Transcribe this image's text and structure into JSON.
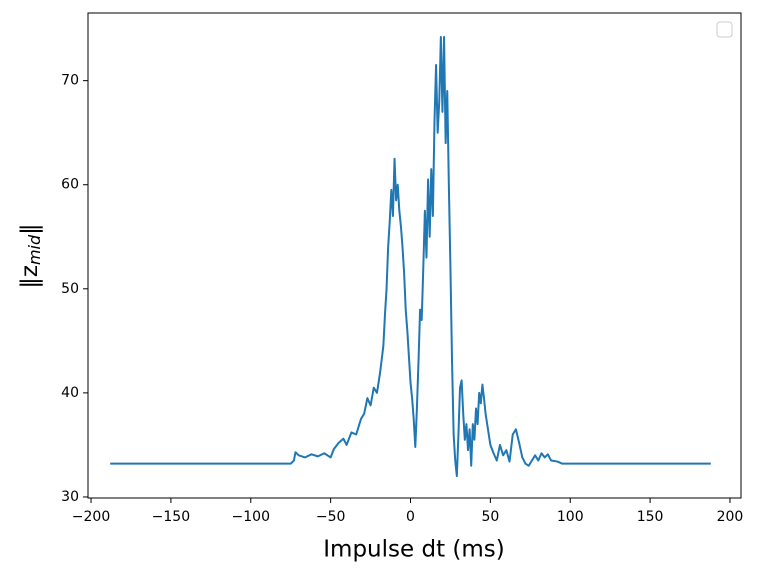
{
  "chart_data": {
    "type": "line",
    "xlabel": "Impulse dt (ms)",
    "ylabel_parts": [
      "‖z",
      "mid",
      "‖"
    ],
    "x": [
      -188,
      -75,
      -73,
      -72,
      -70,
      -66,
      -62,
      -58,
      -54,
      -50,
      -48,
      -45,
      -42,
      -40,
      -37,
      -34,
      -31,
      -29,
      -27,
      -25,
      -23,
      -21,
      -19,
      -17,
      -16,
      -15,
      -14,
      -13,
      -12,
      -11,
      -10,
      -9,
      -8,
      -7,
      -6,
      -5,
      -4,
      -3,
      -2,
      -1,
      0,
      1,
      2,
      3,
      4,
      5,
      6,
      7,
      8,
      9,
      10,
      11,
      12,
      13,
      14,
      15,
      16,
      17,
      18,
      19,
      20,
      21,
      22,
      23,
      24,
      25,
      26,
      27,
      28,
      29,
      30,
      31,
      32,
      33,
      34,
      35,
      36,
      37,
      38,
      39,
      40,
      41,
      42,
      43,
      44,
      45,
      46,
      47,
      48,
      50,
      52,
      54,
      56,
      58,
      60,
      62,
      64,
      66,
      68,
      70,
      72,
      74,
      76,
      78,
      80,
      82,
      84,
      86,
      88,
      92,
      95,
      188
    ],
    "series": [
      {
        "color": "#1f77b4",
        "values": [
          33.2,
          33.2,
          33.5,
          34.3,
          34.0,
          33.8,
          34.1,
          33.9,
          34.2,
          33.8,
          34.6,
          35.2,
          35.6,
          35.0,
          36.2,
          36.0,
          37.5,
          38.0,
          39.5,
          38.8,
          40.5,
          40.0,
          42.0,
          44.5,
          47.5,
          50.0,
          54.0,
          56.5,
          59.5,
          57.0,
          62.5,
          58.5,
          60.0,
          57.5,
          56.0,
          54.0,
          51.5,
          48.0,
          46.0,
          43.5,
          41.0,
          39.5,
          37.5,
          34.8,
          38.5,
          43.0,
          48.0,
          47.0,
          52.0,
          57.5,
          53.0,
          60.5,
          55.0,
          61.5,
          57.0,
          66.0,
          71.5,
          65.0,
          68.0,
          74.2,
          67.0,
          74.2,
          64.0,
          69.0,
          60.0,
          52.0,
          43.0,
          36.0,
          33.5,
          32.0,
          36.0,
          40.5,
          41.2,
          38.0,
          35.5,
          37.0,
          34.5,
          36.5,
          33.0,
          37.0,
          35.5,
          38.5,
          37.0,
          40.0,
          39.0,
          40.8,
          39.5,
          38.0,
          37.0,
          35.0,
          34.2,
          33.5,
          35.0,
          34.0,
          34.5,
          33.4,
          36.0,
          36.5,
          35.2,
          33.8,
          33.2,
          33.0,
          33.5,
          34.0,
          33.5,
          34.2,
          33.8,
          34.1,
          33.5,
          33.4,
          33.2,
          33.2
        ]
      }
    ],
    "xlim": [
      -201.9,
      206.9
    ],
    "ylim": [
      29.9,
      76.5
    ],
    "xticks": [
      {
        "value": -200,
        "label": "−200"
      },
      {
        "value": -150,
        "label": "−150"
      },
      {
        "value": -100,
        "label": "−100"
      },
      {
        "value": -50,
        "label": "−50"
      },
      0,
      50,
      100,
      150,
      200
    ],
    "yticks": [
      30,
      40,
      50,
      60,
      70
    ],
    "legend": "upper right"
  }
}
